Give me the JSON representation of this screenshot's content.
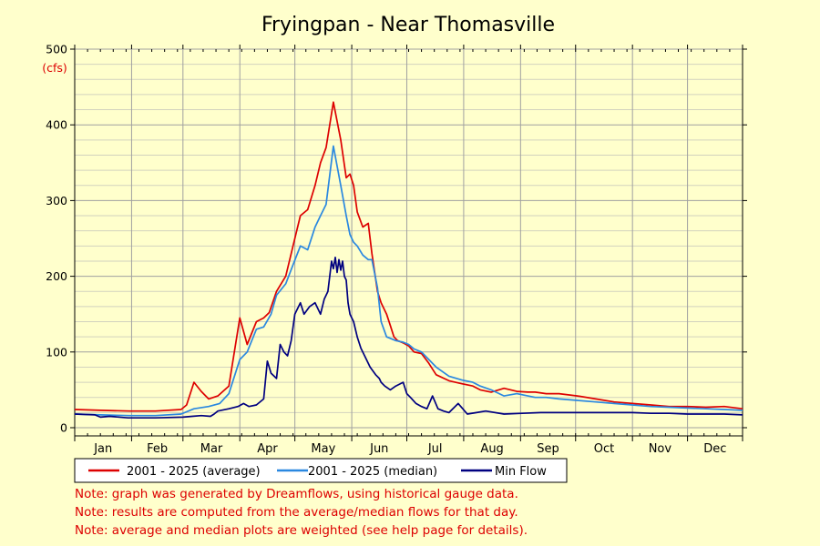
{
  "chart_data": {
    "type": "line",
    "title": "Fryingpan - Near Thomasville",
    "ylabel": "(cfs)",
    "xlabel": "",
    "ylim": [
      0,
      500
    ],
    "yticks": [
      0,
      100,
      200,
      300,
      400,
      500
    ],
    "months": [
      "Jan",
      "Feb",
      "Mar",
      "Apr",
      "May",
      "Jun",
      "Jul",
      "Aug",
      "Sep",
      "Oct",
      "Nov",
      "Dec"
    ],
    "grid": true,
    "legend_position": "bottom",
    "x_unit": "day of year",
    "series": [
      {
        "name": "2001 - 2025 (average)",
        "color": "#DD0000",
        "x": [
          1,
          15,
          31,
          45,
          59,
          62,
          66,
          70,
          74,
          79,
          85,
          91,
          95,
          100,
          104,
          107,
          111,
          116,
          120,
          124,
          128,
          132,
          135,
          138,
          142,
          146,
          149,
          151,
          153,
          155,
          158,
          161,
          163,
          166,
          168,
          171,
          173,
          175,
          177,
          180,
          183,
          186,
          190,
          194,
          198,
          205,
          212,
          218,
          222,
          228,
          235,
          242,
          248,
          252,
          258,
          265,
          275,
          285,
          295,
          305,
          315,
          325,
          335,
          345,
          355,
          365
        ],
        "values": [
          24,
          23,
          22,
          22,
          24,
          30,
          60,
          48,
          38,
          42,
          55,
          145,
          110,
          140,
          145,
          152,
          180,
          200,
          240,
          280,
          288,
          320,
          350,
          370,
          430,
          380,
          330,
          335,
          320,
          285,
          265,
          270,
          230,
          180,
          165,
          150,
          135,
          120,
          115,
          112,
          108,
          100,
          98,
          85,
          70,
          62,
          58,
          55,
          50,
          47,
          52,
          48,
          47,
          47,
          45,
          45,
          42,
          38,
          34,
          32,
          30,
          28,
          28,
          27,
          28,
          25
        ]
      },
      {
        "name": "2001 - 2025 (median)",
        "color": "#2A88E0",
        "x": [
          1,
          15,
          31,
          45,
          59,
          66,
          74,
          80,
          85,
          91,
          95,
          100,
          104,
          108,
          111,
          116,
          120,
          124,
          128,
          132,
          135,
          138,
          142,
          146,
          149,
          151,
          153,
          155,
          158,
          161,
          163,
          166,
          168,
          171,
          173,
          176,
          180,
          183,
          186,
          190,
          194,
          198,
          205,
          212,
          218,
          222,
          228,
          235,
          242,
          248,
          252,
          258,
          265,
          275,
          285,
          295,
          305,
          315,
          325,
          335,
          345,
          355,
          365
        ],
        "values": [
          18,
          17,
          16,
          16,
          18,
          25,
          28,
          32,
          45,
          90,
          100,
          130,
          133,
          150,
          175,
          190,
          215,
          240,
          235,
          265,
          280,
          295,
          372,
          320,
          280,
          255,
          245,
          240,
          228,
          222,
          222,
          185,
          140,
          120,
          118,
          115,
          113,
          110,
          104,
          100,
          90,
          80,
          68,
          63,
          60,
          55,
          50,
          42,
          45,
          42,
          40,
          40,
          38,
          36,
          34,
          32,
          30,
          28,
          27,
          26,
          25,
          24,
          23
        ]
      },
      {
        "name": "Min Flow",
        "color": "#000080",
        "x": [
          1,
          12,
          15,
          20,
          30,
          45,
          60,
          65,
          70,
          75,
          77,
          79,
          85,
          90,
          93,
          96,
          100,
          104,
          106,
          108,
          111,
          113,
          115,
          117,
          119,
          121,
          124,
          126,
          129,
          132,
          135,
          137,
          139,
          141,
          142,
          143,
          144,
          145,
          146,
          147,
          148,
          149,
          150,
          151,
          153,
          155,
          157,
          159,
          162,
          165,
          167,
          168,
          170,
          173,
          176,
          180,
          182,
          184,
          187,
          190,
          193,
          196,
          199,
          202,
          205,
          210,
          215,
          220,
          225,
          235,
          245,
          255,
          265,
          275,
          285,
          295,
          305,
          315,
          325,
          335,
          345,
          355,
          365
        ],
        "values": [
          18,
          17,
          14,
          15,
          13,
          13,
          14,
          15,
          16,
          15,
          18,
          22,
          25,
          28,
          32,
          28,
          30,
          38,
          88,
          72,
          65,
          110,
          100,
          95,
          115,
          150,
          165,
          150,
          160,
          165,
          150,
          170,
          180,
          220,
          210,
          225,
          205,
          222,
          208,
          220,
          200,
          195,
          165,
          150,
          140,
          120,
          105,
          95,
          80,
          70,
          65,
          60,
          55,
          50,
          55,
          60,
          45,
          40,
          32,
          28,
          25,
          42,
          25,
          22,
          20,
          32,
          18,
          20,
          22,
          18,
          19,
          20,
          20,
          20,
          20,
          20,
          20,
          19,
          19,
          18,
          18,
          18,
          17
        ]
      }
    ]
  },
  "notes": [
    "Note: graph was generated by Dreamflows, using historical gauge data.",
    "Note: results are computed from the average/median flows for that day.",
    "Note: average and median plots are weighted (see help page for details)."
  ]
}
